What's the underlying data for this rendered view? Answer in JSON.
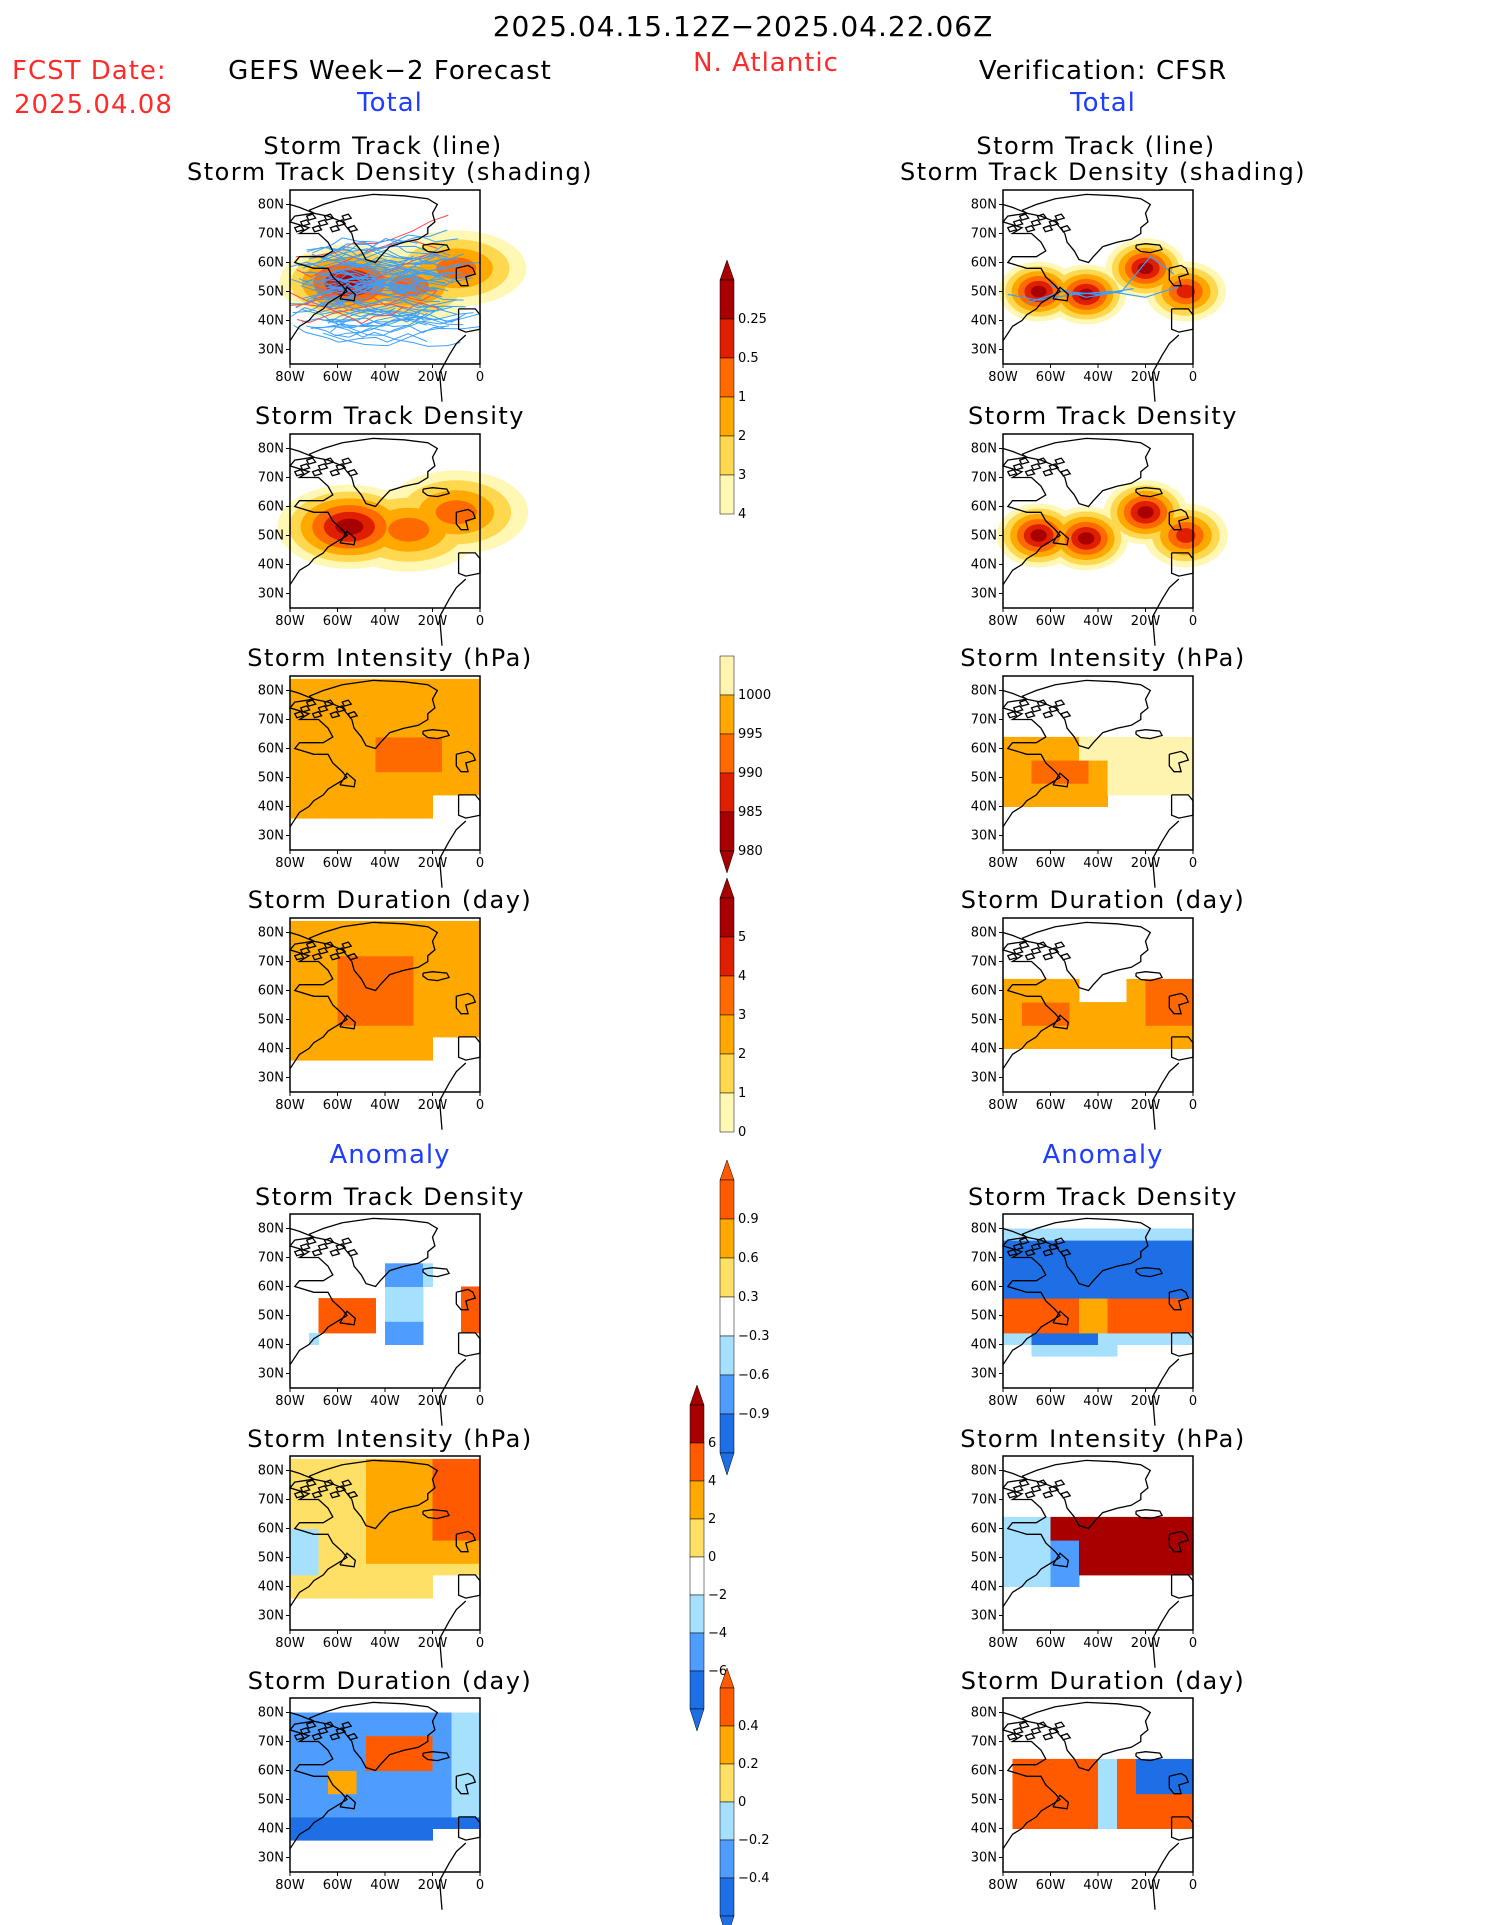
{
  "header": {
    "period": "2025.04.15.12Z−2025.04.22.06Z",
    "fcst_label": "FCST Date:",
    "fcst_date": "2025.04.08",
    "left_title": "GEFS Week−2 Forecast",
    "region": "N. Atlantic",
    "right_title": "Verification: CFSR",
    "left_section_total": "Total",
    "right_section_total": "Total",
    "left_section_anomaly": "Anomaly",
    "right_section_anomaly": "Anomaly"
  },
  "panel_titles": {
    "track1": "Storm Track (line)",
    "track2": "Storm Track Density (shading)",
    "density": "Storm Track Density",
    "intensity": "Storm Intensity (hPa)",
    "duration": "Storm Duration (day)"
  },
  "axes": {
    "lat_ticks": [
      "80N",
      "70N",
      "60N",
      "50N",
      "40N",
      "30N"
    ],
    "lon_ticks": [
      "80W",
      "60W",
      "40W",
      "20W",
      "0"
    ]
  },
  "colors": {
    "density": [
      "#fff7b4",
      "#ffd84f",
      "#ffa800",
      "#ff6a00",
      "#e01e00",
      "#a80000"
    ],
    "intensity": [
      "#a80000",
      "#e01e00",
      "#ff6a00",
      "#ffa800",
      "#fff3b0"
    ],
    "duration": [
      "#fff7b4",
      "#ffd84f",
      "#ffa800",
      "#ff6a00",
      "#e01e00",
      "#a80000"
    ],
    "anomaly": [
      "#1e6fe6",
      "#4f9cff",
      "#a6e0ff",
      "#ffffff",
      "#ffe066",
      "#ffa800",
      "#ff5a00",
      "#a80000"
    ],
    "track_lines": "#3aa0ff",
    "track_lines_center": "#ff4a4a"
  },
  "chart_data": [
    {
      "type": "heatmap",
      "id": "forecast-track-density-with-tracks",
      "column": "GEFS Week−2 Forecast",
      "title": "Storm Track (line) / Storm Track Density (shading)",
      "xlim": [
        -80,
        0
      ],
      "ylim": [
        25,
        85
      ],
      "centers": [
        {
          "lon": -55,
          "lat": 53,
          "level": 5
        },
        {
          "lon": -30,
          "lat": 52,
          "level": 3
        },
        {
          "lon": -10,
          "lat": 58,
          "level": 3
        }
      ]
    },
    {
      "type": "heatmap",
      "id": "cfsr-track-density-with-tracks",
      "column": "Verification: CFSR",
      "title": "Storm Track (line) / Storm Track Density (shading)",
      "xlim": [
        -80,
        0
      ],
      "ylim": [
        25,
        85
      ],
      "centers": [
        {
          "lon": -65,
          "lat": 50,
          "level": 5
        },
        {
          "lon": -45,
          "lat": 49,
          "level": 5
        },
        {
          "lon": -20,
          "lat": 58,
          "level": 5
        },
        {
          "lon": -3,
          "lat": 50,
          "level": 4
        }
      ]
    },
    {
      "type": "bar",
      "id": "colorbar-density",
      "title": "Storm Track Density",
      "values": [
        0.25,
        0.5,
        1,
        2,
        3,
        4
      ]
    },
    {
      "type": "bar",
      "id": "colorbar-intensity",
      "title": "Storm Intensity (hPa)",
      "values": [
        1000,
        995,
        990,
        985,
        980
      ]
    },
    {
      "type": "bar",
      "id": "colorbar-duration",
      "title": "Storm Duration (day)",
      "values": [
        5,
        4,
        3,
        2,
        1,
        0
      ]
    },
    {
      "type": "bar",
      "id": "colorbar-density-anomaly",
      "title": "Storm Track Density",
      "values": [
        0.9,
        0.6,
        0.3,
        -0.3,
        -0.6,
        -0.9
      ]
    },
    {
      "type": "bar",
      "id": "colorbar-intensity-anomaly",
      "title": "Storm Intensity (hPa)",
      "values": [
        6,
        4,
        2,
        0,
        -2,
        -4,
        -6
      ]
    },
    {
      "type": "bar",
      "id": "colorbar-duration-anomaly",
      "title": "Storm Duration (day)",
      "values": [
        0.4,
        0.2,
        0,
        -0.2,
        -0.4
      ]
    }
  ]
}
